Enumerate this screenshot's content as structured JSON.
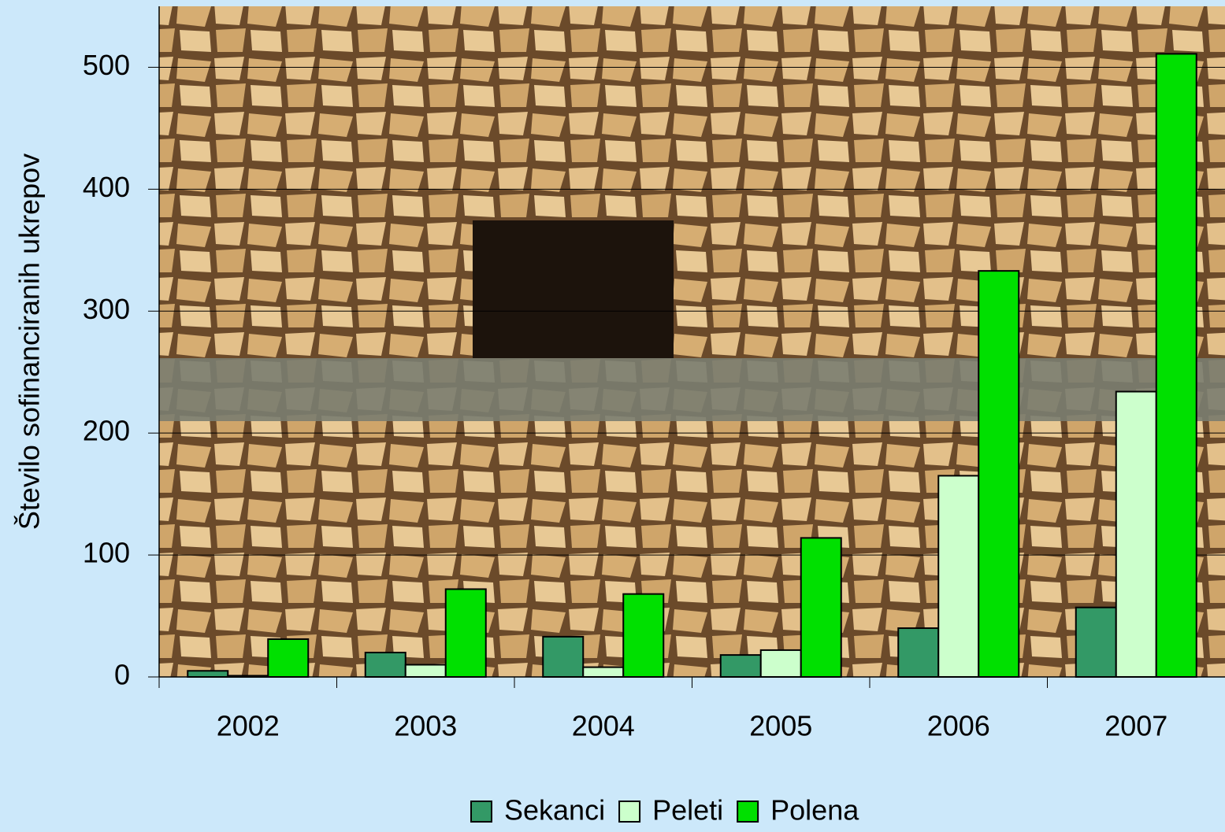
{
  "chart_data": {
    "type": "bar",
    "y_label": "Število sofinanciranih ukrepov",
    "categories": [
      "2002",
      "2003",
      "2004",
      "2005",
      "2006",
      "2007"
    ],
    "series": [
      {
        "name": "Sekanci",
        "color": "#339966",
        "values": [
          5,
          20,
          33,
          18,
          40,
          57
        ]
      },
      {
        "name": "Peleti",
        "color": "#ccffcc",
        "values": [
          1,
          10,
          8,
          22,
          165,
          234
        ]
      },
      {
        "name": "Polena",
        "color": "#00e000",
        "values": [
          31,
          72,
          68,
          114,
          333,
          511
        ]
      }
    ],
    "ylim": [
      0,
      550
    ],
    "yticks": [
      0,
      100,
      200,
      300,
      400,
      500
    ],
    "grid": true,
    "legend": "bottom"
  }
}
